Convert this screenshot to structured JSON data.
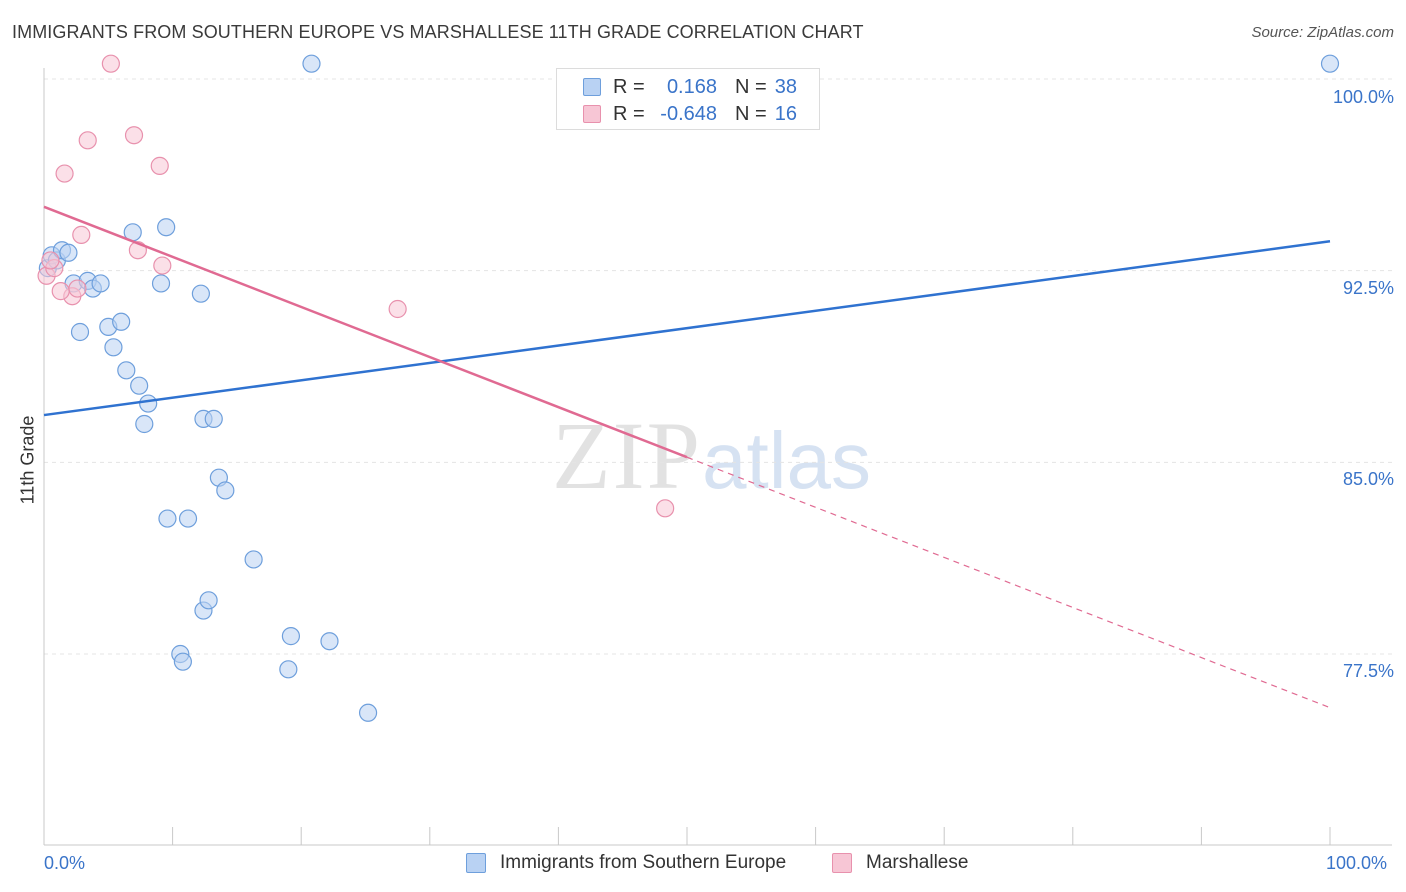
{
  "title": "IMMIGRANTS FROM SOUTHERN EUROPE VS MARSHALLESE 11TH GRADE CORRELATION CHART",
  "source": "Source: ZipAtlas.com",
  "watermark": {
    "zip": "ZIP",
    "atlas": "atlas"
  },
  "legend_top": {
    "rows": [
      {
        "r_label": "R =",
        "r_value": "0.168",
        "n_label": "N =",
        "n_value": "38"
      },
      {
        "r_label": "R =",
        "r_value": "-0.648",
        "n_label": "N =",
        "n_value": "16"
      }
    ]
  },
  "legend_bottom": [
    "Immigrants from Southern Europe",
    "Marshallese"
  ],
  "colors": {
    "blue_fill": "#b9d2f3",
    "blue_stroke": "#6e9fdc",
    "blue_line": "#2f72d0",
    "pink_fill": "#f7c6d5",
    "pink_stroke": "#e891ad",
    "pink_line": "#e06a92",
    "tick_label": "#3a74c9",
    "grid": "#e4e4e4"
  },
  "chart_data": {
    "type": "scatter",
    "title": "IMMIGRANTS FROM SOUTHERN EUROPE VS MARSHALLESE 11TH GRADE CORRELATION CHART",
    "xlabel": "",
    "ylabel": "11th Grade",
    "xlim": [
      0,
      100
    ],
    "ylim": [
      70.0,
      101.0
    ],
    "x_tick_labels": [
      "0.0%",
      "100.0%"
    ],
    "y_ticks": [
      77.5,
      85.0,
      92.5,
      100.0
    ],
    "y_tick_labels": [
      "77.5%",
      "85.0%",
      "92.5%",
      "100.0%"
    ],
    "grid": true,
    "series": [
      {
        "name": "Immigrants from Southern Europe",
        "color": "#6e9fdc",
        "points": [
          [
            0.3,
            92.6
          ],
          [
            0.6,
            93.1
          ],
          [
            1.0,
            92.9
          ],
          [
            1.4,
            93.3
          ],
          [
            1.9,
            93.2
          ],
          [
            2.3,
            92.0
          ],
          [
            3.4,
            92.1
          ],
          [
            3.8,
            91.8
          ],
          [
            4.4,
            92.0
          ],
          [
            2.8,
            90.1
          ],
          [
            5.0,
            90.3
          ],
          [
            6.0,
            90.5
          ],
          [
            5.4,
            89.5
          ],
          [
            6.4,
            88.6
          ],
          [
            7.4,
            88.0
          ],
          [
            8.1,
            87.3
          ],
          [
            7.8,
            86.5
          ],
          [
            6.9,
            94.0
          ],
          [
            9.1,
            92.0
          ],
          [
            9.5,
            94.2
          ],
          [
            12.2,
            91.6
          ],
          [
            12.4,
            86.7
          ],
          [
            13.2,
            86.7
          ],
          [
            13.6,
            84.4
          ],
          [
            14.1,
            83.9
          ],
          [
            9.6,
            82.8
          ],
          [
            11.2,
            82.8
          ],
          [
            16.3,
            81.2
          ],
          [
            12.4,
            79.2
          ],
          [
            12.8,
            79.6
          ],
          [
            10.6,
            77.5
          ],
          [
            10.8,
            77.2
          ],
          [
            19.2,
            78.2
          ],
          [
            22.2,
            78.0
          ],
          [
            19.0,
            76.9
          ],
          [
            25.2,
            75.2
          ],
          [
            20.8,
            100.6
          ],
          [
            100.0,
            100.6
          ]
        ],
        "trend": {
          "x": [
            0,
            100
          ],
          "y": [
            86.85,
            93.65
          ]
        }
      },
      {
        "name": "Marshallese",
        "color": "#e891ad",
        "points": [
          [
            0.2,
            92.3
          ],
          [
            0.8,
            92.6
          ],
          [
            1.6,
            96.3
          ],
          [
            2.2,
            91.5
          ],
          [
            2.6,
            91.8
          ],
          [
            2.9,
            93.9
          ],
          [
            3.4,
            97.6
          ],
          [
            5.2,
            100.6
          ],
          [
            7.0,
            97.8
          ],
          [
            7.3,
            93.3
          ],
          [
            9.0,
            96.6
          ],
          [
            9.2,
            92.7
          ],
          [
            27.5,
            91.0
          ],
          [
            48.3,
            83.2
          ],
          [
            1.3,
            91.7
          ],
          [
            0.5,
            92.9
          ]
        ],
        "trend": {
          "x": [
            0,
            50
          ],
          "y": [
            95.0,
            85.2
          ]
        },
        "trend_dashed": {
          "x": [
            50,
            100
          ],
          "y": [
            85.2,
            75.4
          ]
        }
      }
    ]
  }
}
